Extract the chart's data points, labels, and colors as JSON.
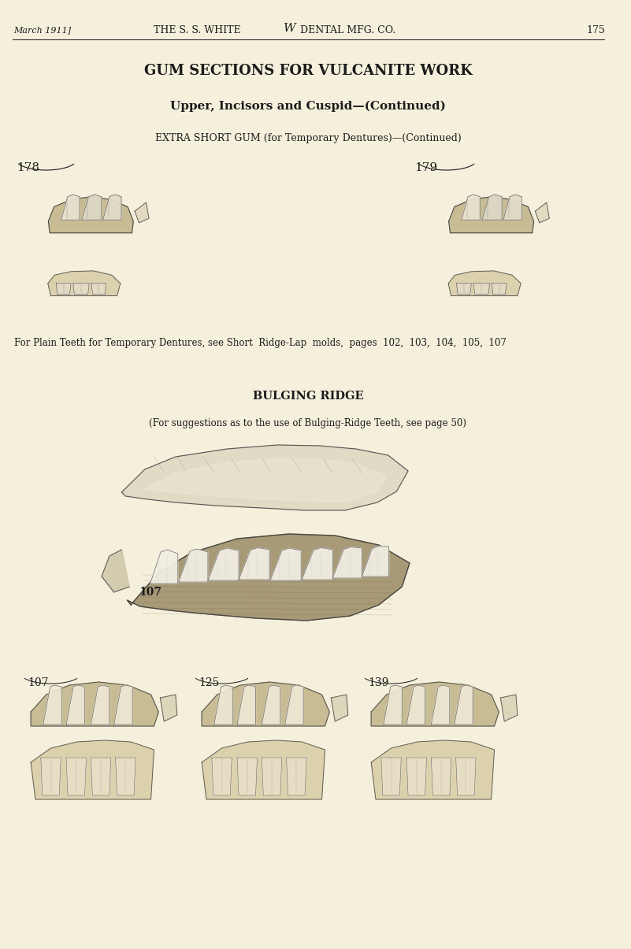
{
  "bg_color": "#f5f0dc",
  "header_left": "March 1911]",
  "header_center": "THE S. S. WHITE",
  "header_logo": "W",
  "header_right": "DENTAL MFG. CO.",
  "header_page": "175",
  "title": "GUM SECTIONS FOR VULCANITE WORK",
  "subtitle": "Upper, Incisors and Cuspid—(Continued)",
  "extra_short_label": "EXTRA SHORT GUM (for Temporary Dentures)—(Continued)",
  "label_178": "178",
  "label_179": "179",
  "plain_teeth_text": "For Plain Teeth for Temporary Dentures, see Short  Ridge-Lap  molds,  pages  102,  103,  104,  105,  107",
  "bulging_ridge_title": "BULGING RIDGE",
  "bulging_ridge_sub": "(For suggestions as to the use of Bulging-Ridge Teeth, see page 50)",
  "label_107_large": "107",
  "label_107": "107",
  "label_125": "125",
  "label_139": "139",
  "text_color": "#1a1a1a",
  "line_color": "#333333"
}
